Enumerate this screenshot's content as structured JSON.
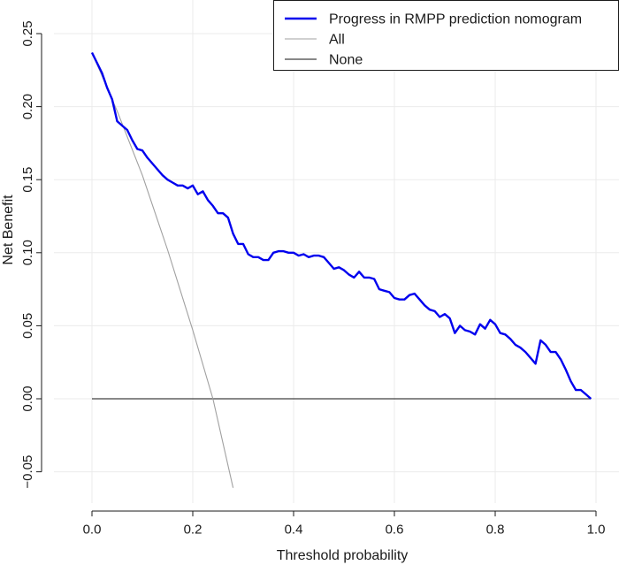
{
  "chart_data": {
    "type": "line",
    "xlabel": "Threshold probability",
    "ylabel": "Net Benefit",
    "xlim": [
      0.0,
      1.0
    ],
    "ylim": [
      -0.05,
      0.25
    ],
    "xticks": [
      "0.0",
      "0.2",
      "0.4",
      "0.6",
      "0.8",
      "1.0"
    ],
    "yticks": [
      "−0.05",
      "0.00",
      "0.05",
      "0.10",
      "0.15",
      "0.20",
      "0.25"
    ],
    "grid": true,
    "legend_position": "top-right",
    "series": [
      {
        "name": "Progress in RMPP prediction nomogram",
        "color": "#0000ee",
        "x": [
          0.0,
          0.02,
          0.03,
          0.04,
          0.05,
          0.06,
          0.07,
          0.08,
          0.09,
          0.1,
          0.11,
          0.12,
          0.13,
          0.14,
          0.15,
          0.16,
          0.17,
          0.18,
          0.19,
          0.2,
          0.21,
          0.22,
          0.23,
          0.24,
          0.25,
          0.26,
          0.27,
          0.28,
          0.29,
          0.3,
          0.31,
          0.32,
          0.33,
          0.34,
          0.35,
          0.36,
          0.37,
          0.38,
          0.39,
          0.4,
          0.41,
          0.42,
          0.43,
          0.44,
          0.45,
          0.46,
          0.47,
          0.48,
          0.49,
          0.5,
          0.51,
          0.52,
          0.53,
          0.54,
          0.55,
          0.56,
          0.57,
          0.58,
          0.59,
          0.6,
          0.61,
          0.62,
          0.63,
          0.64,
          0.65,
          0.66,
          0.67,
          0.68,
          0.69,
          0.7,
          0.71,
          0.72,
          0.73,
          0.74,
          0.75,
          0.76,
          0.77,
          0.78,
          0.79,
          0.8,
          0.81,
          0.82,
          0.83,
          0.84,
          0.85,
          0.86,
          0.87,
          0.88,
          0.89,
          0.9,
          0.91,
          0.92,
          0.93,
          0.94,
          0.95,
          0.96,
          0.97,
          0.98,
          0.99
        ],
        "y": [
          0.237,
          0.223,
          0.213,
          0.205,
          0.19,
          0.187,
          0.184,
          0.177,
          0.171,
          0.17,
          0.165,
          0.161,
          0.157,
          0.153,
          0.15,
          0.148,
          0.146,
          0.146,
          0.144,
          0.146,
          0.14,
          0.142,
          0.136,
          0.132,
          0.127,
          0.127,
          0.124,
          0.113,
          0.106,
          0.106,
          0.099,
          0.097,
          0.097,
          0.095,
          0.095,
          0.1,
          0.101,
          0.101,
          0.1,
          0.1,
          0.098,
          0.099,
          0.097,
          0.098,
          0.098,
          0.097,
          0.093,
          0.089,
          0.09,
          0.088,
          0.085,
          0.083,
          0.087,
          0.083,
          0.083,
          0.082,
          0.075,
          0.074,
          0.073,
          0.069,
          0.068,
          0.068,
          0.071,
          0.072,
          0.068,
          0.064,
          0.061,
          0.06,
          0.056,
          0.058,
          0.055,
          0.045,
          0.05,
          0.047,
          0.046,
          0.044,
          0.051,
          0.048,
          0.054,
          0.051,
          0.045,
          0.044,
          0.041,
          0.037,
          0.035,
          0.032,
          0.028,
          0.024,
          0.04,
          0.037,
          0.032,
          0.032,
          0.027,
          0.02,
          0.012,
          0.006,
          0.006,
          0.003,
          0.0
        ]
      },
      {
        "name": "All",
        "color": "#a0a0a0",
        "x": [
          0.0,
          0.05,
          0.1,
          0.15,
          0.2,
          0.24,
          0.28
        ],
        "y": [
          0.237,
          0.197,
          0.153,
          0.102,
          0.047,
          0.0,
          -0.061
        ]
      },
      {
        "name": "None",
        "color": "#404040",
        "x": [
          0.0,
          0.99
        ],
        "y": [
          0.0,
          0.0
        ]
      }
    ]
  }
}
